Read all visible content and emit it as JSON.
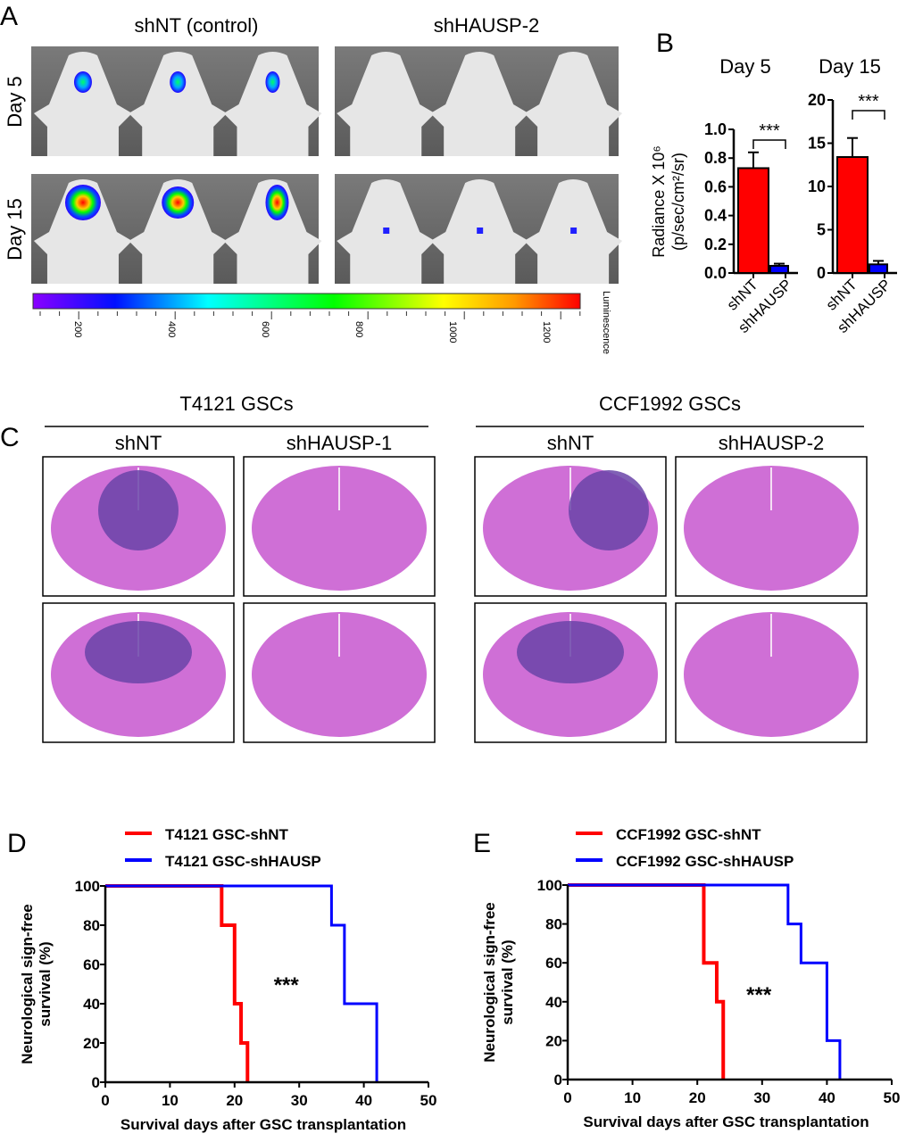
{
  "panel_labels": {
    "a": "A",
    "b": "B",
    "c": "C",
    "d": "D",
    "e": "E"
  },
  "panel_a": {
    "columns": [
      "shNT (control)",
      "shHAUSP-2"
    ],
    "rows": [
      "Day 5",
      "Day 15"
    ],
    "colorbar": {
      "ticks": [
        "200",
        "400",
        "600",
        "800",
        "1000",
        "1200"
      ],
      "label": "Luminescence"
    }
  },
  "panel_c": {
    "groups": [
      {
        "title": "T4121 GSCs",
        "conditions": [
          "shNT",
          "shHAUSP-1"
        ]
      },
      {
        "title": "CCF1992 GSCs",
        "conditions": [
          "shNT",
          "shHAUSP-2"
        ]
      }
    ]
  },
  "colors": {
    "shNT": "#ff0000",
    "shHAUSP": "#0000ff"
  },
  "chart_data": [
    {
      "type": "bar",
      "panel": "B",
      "title": "Day 5",
      "categories": [
        "shNT",
        "shHAUSP"
      ],
      "values": [
        0.73,
        0.05
      ],
      "errors": [
        0.11,
        0.015
      ],
      "ylabel": "Radiance X 10⁶ (p/sec/cm²/sr)",
      "ylim": [
        0,
        1.0
      ],
      "yticks": [
        "0.0",
        "0.2",
        "0.4",
        "0.6",
        "0.8",
        "1.0"
      ],
      "significance": "***"
    },
    {
      "type": "bar",
      "panel": "B",
      "title": "Day 15",
      "categories": [
        "shNT",
        "shHAUSP"
      ],
      "values": [
        13.4,
        1.0
      ],
      "errors": [
        2.2,
        0.4
      ],
      "ylim": [
        0,
        20
      ],
      "yticks": [
        "0",
        "5",
        "10",
        "15",
        "20"
      ],
      "significance": "***"
    },
    {
      "type": "line",
      "panel": "D",
      "xlabel": "Survival days after GSC transplantation",
      "ylabel": "Neurological sign-free survival (%)",
      "xlim": [
        0,
        50
      ],
      "ylim": [
        0,
        100
      ],
      "xticks": [
        "0",
        "10",
        "20",
        "30",
        "40",
        "50"
      ],
      "yticks": [
        "0",
        "20",
        "40",
        "60",
        "80",
        "100"
      ],
      "legend": "top",
      "series": [
        {
          "name": "T4121 GSC-shNT",
          "color": "#ff0000",
          "x": [
            0,
            18,
            20,
            21,
            22
          ],
          "y": [
            100,
            80,
            40,
            20,
            0
          ]
        },
        {
          "name": "T4121 GSC-shHAUSP",
          "color": "#0000ff",
          "x": [
            0,
            35,
            37,
            42
          ],
          "y": [
            100,
            80,
            40,
            0
          ]
        }
      ],
      "significance": "***"
    },
    {
      "type": "line",
      "panel": "E",
      "xlabel": "Survival days after GSC transplantation",
      "ylabel": "Neurological sign-free survival (%)",
      "xlim": [
        0,
        50
      ],
      "ylim": [
        0,
        100
      ],
      "xticks": [
        "0",
        "10",
        "20",
        "30",
        "40",
        "50"
      ],
      "yticks": [
        "0",
        "20",
        "40",
        "60",
        "80",
        "100"
      ],
      "legend": "top",
      "series": [
        {
          "name": "CCF1992 GSC-shNT",
          "color": "#ff0000",
          "x": [
            0,
            21,
            23,
            24
          ],
          "y": [
            100,
            60,
            40,
            0
          ]
        },
        {
          "name": "CCF1992 GSC-shHAUSP",
          "color": "#0000ff",
          "x": [
            0,
            34,
            36,
            40,
            42
          ],
          "y": [
            100,
            80,
            60,
            20,
            0
          ]
        }
      ],
      "significance": "***"
    }
  ]
}
